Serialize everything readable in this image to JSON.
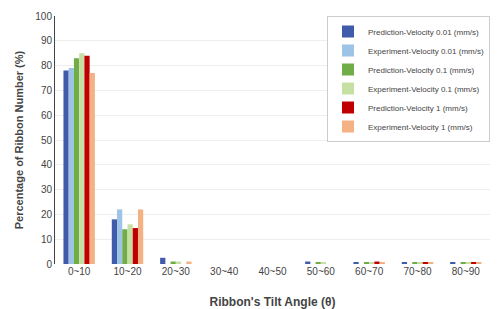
{
  "chart_data": {
    "type": "bar",
    "categories": [
      "0~10",
      "10~20",
      "20~30",
      "30~40",
      "40~50",
      "50~60",
      "60~70",
      "70~80",
      "80~90"
    ],
    "series": [
      {
        "name": "Prediction-Velocity 0.01 (mm/s)",
        "color": "#3F5BA9",
        "values": [
          78,
          18,
          2.5,
          0,
          0,
          1,
          0.5,
          0.5,
          0.5
        ]
      },
      {
        "name": "Experiment-Velocity 0.01 (mm/s)",
        "color": "#9DC3E6",
        "values": [
          79,
          22,
          0,
          0,
          0,
          0,
          0,
          0,
          0
        ]
      },
      {
        "name": "Prediction-Velocity 0.1 (mm/s)",
        "color": "#70AD47",
        "values": [
          83,
          14,
          1,
          0,
          0,
          0.5,
          0.5,
          0.5,
          0.5
        ]
      },
      {
        "name": "Experiment-Velocity 0.1 (mm/s)",
        "color": "#C6E0A4",
        "values": [
          85,
          16,
          1,
          0,
          0,
          0.5,
          0.5,
          0.5,
          0.5
        ]
      },
      {
        "name": "Prediction-Velocity 1 (mm/s)",
        "color": "#C00000",
        "values": [
          84,
          14.5,
          0,
          0,
          0,
          0,
          1,
          0.5,
          0.5
        ]
      },
      {
        "name": "Experiment-Velocity 1 (mm/s)",
        "color": "#F4B183",
        "values": [
          77,
          22,
          1,
          0,
          0,
          0,
          0.5,
          0.5,
          0.5
        ]
      }
    ],
    "xlabel": "Ribbon's Tilt Angle (θ)",
    "ylabel": "Percentage of Ribbon Number (%)",
    "ylim": [
      0,
      100
    ],
    "yticks": [
      0,
      10,
      20,
      30,
      40,
      50,
      60,
      70,
      80,
      90,
      100
    ],
    "grid": true,
    "legend": "upper right"
  }
}
